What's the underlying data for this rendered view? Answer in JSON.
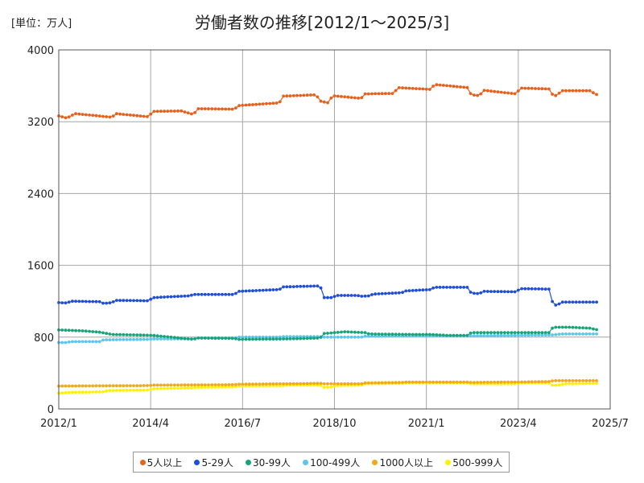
{
  "chart_data": {
    "type": "line",
    "title": "労働者数の推移[2012/1～2025/3]",
    "unit_label": "[単位：万人]",
    "xlabel": "",
    "ylabel": "",
    "ylim": [
      0,
      4000
    ],
    "yticks": [
      "0",
      "800",
      "1600",
      "2400",
      "3200",
      "4000"
    ],
    "xlim": [
      "2012/1",
      "2025/7"
    ],
    "xticks": [
      "2012/1",
      "2014/4",
      "2016/7",
      "2018/10",
      "2021/1",
      "2023/4",
      "2025/7"
    ],
    "grid": true,
    "legend_position": "bottom",
    "series": [
      {
        "name": "5人以上",
        "color": "#e8601c",
        "anchors": [
          [
            2012.0,
            3265
          ],
          [
            2012.2,
            3240
          ],
          [
            2012.4,
            3290
          ],
          [
            2013.3,
            3250
          ],
          [
            2013.4,
            3290
          ],
          [
            2014.2,
            3255
          ],
          [
            2014.3,
            3315
          ],
          [
            2015.0,
            3320
          ],
          [
            2015.3,
            3280
          ],
          [
            2015.4,
            3345
          ],
          [
            2016.3,
            3340
          ],
          [
            2016.4,
            3380
          ],
          [
            2017.4,
            3410
          ],
          [
            2017.5,
            3485
          ],
          [
            2018.3,
            3500
          ],
          [
            2018.4,
            3430
          ],
          [
            2018.6,
            3410
          ],
          [
            2018.7,
            3490
          ],
          [
            2019.4,
            3460
          ],
          [
            2019.5,
            3510
          ],
          [
            2020.2,
            3515
          ],
          [
            2020.3,
            3580
          ],
          [
            2021.1,
            3560
          ],
          [
            2021.2,
            3615
          ],
          [
            2022.0,
            3580
          ],
          [
            2022.1,
            3500
          ],
          [
            2022.3,
            3490
          ],
          [
            2022.4,
            3550
          ],
          [
            2023.2,
            3510
          ],
          [
            2023.3,
            3575
          ],
          [
            2024.0,
            3565
          ],
          [
            2024.1,
            3495
          ],
          [
            2024.2,
            3490
          ],
          [
            2024.3,
            3545
          ],
          [
            2025.0,
            3545
          ],
          [
            2025.2,
            3495
          ]
        ]
      },
      {
        "name": "5-29人",
        "color": "#1f4fd8",
        "anchors": [
          [
            2012.0,
            1185
          ],
          [
            2012.2,
            1180
          ],
          [
            2012.3,
            1200
          ],
          [
            2013.0,
            1195
          ],
          [
            2013.1,
            1175
          ],
          [
            2013.3,
            1185
          ],
          [
            2013.4,
            1210
          ],
          [
            2014.2,
            1205
          ],
          [
            2014.3,
            1240
          ],
          [
            2015.2,
            1260
          ],
          [
            2015.3,
            1275
          ],
          [
            2016.3,
            1275
          ],
          [
            2016.4,
            1310
          ],
          [
            2017.4,
            1330
          ],
          [
            2017.5,
            1360
          ],
          [
            2018.4,
            1370
          ],
          [
            2018.5,
            1240
          ],
          [
            2018.7,
            1240
          ],
          [
            2018.8,
            1265
          ],
          [
            2019.3,
            1265
          ],
          [
            2019.4,
            1255
          ],
          [
            2019.6,
            1260
          ],
          [
            2019.7,
            1280
          ],
          [
            2020.4,
            1295
          ],
          [
            2020.5,
            1315
          ],
          [
            2021.1,
            1330
          ],
          [
            2021.2,
            1355
          ],
          [
            2022.0,
            1355
          ],
          [
            2022.1,
            1290
          ],
          [
            2022.3,
            1285
          ],
          [
            2022.4,
            1310
          ],
          [
            2023.2,
            1305
          ],
          [
            2023.3,
            1340
          ],
          [
            2024.0,
            1335
          ],
          [
            2024.1,
            1170
          ],
          [
            2024.2,
            1150
          ],
          [
            2024.3,
            1190
          ],
          [
            2025.2,
            1190
          ]
        ]
      },
      {
        "name": "30-99人",
        "color": "#17a47b",
        "anchors": [
          [
            2012.0,
            880
          ],
          [
            2012.6,
            870
          ],
          [
            2013.0,
            855
          ],
          [
            2013.3,
            830
          ],
          [
            2014.3,
            820
          ],
          [
            2015.3,
            775
          ],
          [
            2015.4,
            790
          ],
          [
            2016.3,
            785
          ],
          [
            2016.4,
            775
          ],
          [
            2017.5,
            780
          ],
          [
            2017.6,
            780
          ],
          [
            2018.4,
            790
          ],
          [
            2018.5,
            840
          ],
          [
            2019.0,
            860
          ],
          [
            2019.5,
            850
          ],
          [
            2019.6,
            835
          ],
          [
            2020.6,
            830
          ],
          [
            2021.1,
            830
          ],
          [
            2021.5,
            820
          ],
          [
            2022.0,
            820
          ],
          [
            2022.1,
            850
          ],
          [
            2022.4,
            850
          ],
          [
            2024.0,
            850
          ],
          [
            2024.1,
            910
          ],
          [
            2024.5,
            910
          ],
          [
            2025.0,
            900
          ],
          [
            2025.2,
            880
          ]
        ]
      },
      {
        "name": "100-499人",
        "color": "#5bc6ee",
        "anchors": [
          [
            2012.0,
            740
          ],
          [
            2012.2,
            740
          ],
          [
            2012.3,
            750
          ],
          [
            2013.0,
            750
          ],
          [
            2013.1,
            770
          ],
          [
            2014.2,
            775
          ],
          [
            2014.3,
            780
          ],
          [
            2015.3,
            780
          ],
          [
            2015.4,
            790
          ],
          [
            2016.3,
            790
          ],
          [
            2016.4,
            800
          ],
          [
            2017.4,
            800
          ],
          [
            2017.5,
            805
          ],
          [
            2018.4,
            805
          ],
          [
            2018.5,
            800
          ],
          [
            2019.4,
            800
          ],
          [
            2019.5,
            810
          ],
          [
            2021.1,
            815
          ],
          [
            2022.2,
            815
          ],
          [
            2024.1,
            825
          ],
          [
            2024.3,
            835
          ],
          [
            2025.2,
            835
          ]
        ]
      },
      {
        "name": "1000人以上",
        "color": "#f2a81d",
        "anchors": [
          [
            2012.0,
            255
          ],
          [
            2013.3,
            258
          ],
          [
            2014.2,
            260
          ],
          [
            2014.3,
            265
          ],
          [
            2016.3,
            270
          ],
          [
            2016.4,
            275
          ],
          [
            2017.5,
            280
          ],
          [
            2017.6,
            280
          ],
          [
            2018.4,
            285
          ],
          [
            2018.5,
            280
          ],
          [
            2019.4,
            280
          ],
          [
            2019.5,
            290
          ],
          [
            2020.4,
            295
          ],
          [
            2020.5,
            300
          ],
          [
            2021.4,
            300
          ],
          [
            2022.0,
            300
          ],
          [
            2022.1,
            295
          ],
          [
            2023.2,
            300
          ],
          [
            2023.3,
            300
          ],
          [
            2024.0,
            305
          ],
          [
            2024.1,
            315
          ],
          [
            2025.2,
            315
          ]
        ]
      },
      {
        "name": "500-999人",
        "color": "#fff200",
        "anchors": [
          [
            2012.0,
            175
          ],
          [
            2012.3,
            185
          ],
          [
            2013.1,
            190
          ],
          [
            2013.2,
            205
          ],
          [
            2014.2,
            210
          ],
          [
            2014.3,
            225
          ],
          [
            2015.3,
            235
          ],
          [
            2015.4,
            240
          ],
          [
            2016.3,
            245
          ],
          [
            2016.4,
            255
          ],
          [
            2017.5,
            260
          ],
          [
            2017.6,
            265
          ],
          [
            2018.4,
            265
          ],
          [
            2018.5,
            240
          ],
          [
            2018.7,
            245
          ],
          [
            2018.8,
            260
          ],
          [
            2019.4,
            265
          ],
          [
            2019.5,
            280
          ],
          [
            2020.4,
            285
          ],
          [
            2020.5,
            290
          ],
          [
            2022.0,
            290
          ],
          [
            2022.1,
            280
          ],
          [
            2023.2,
            280
          ],
          [
            2023.3,
            290
          ],
          [
            2024.0,
            290
          ],
          [
            2024.1,
            260
          ],
          [
            2024.3,
            270
          ],
          [
            2024.4,
            280
          ],
          [
            2025.2,
            285
          ]
        ]
      }
    ]
  }
}
